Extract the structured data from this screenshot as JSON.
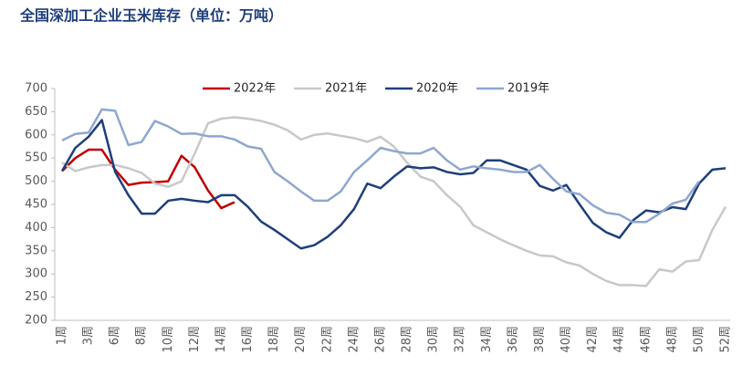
{
  "chart_data": {
    "type": "line",
    "title": "全国深加工企业玉米库存（单位：万吨）",
    "categories": [
      "1周",
      null,
      "3周",
      null,
      "6周",
      null,
      "8周",
      null,
      "10周",
      null,
      "12周",
      null,
      "14周",
      null,
      "16周",
      null,
      "18周",
      null,
      "20周",
      null,
      "22周",
      null,
      "24周",
      null,
      "26周",
      null,
      "28周",
      null,
      "30周",
      null,
      "32周",
      null,
      "34周",
      null,
      "36周",
      null,
      "38周",
      null,
      "40周",
      null,
      "42周",
      null,
      "44周",
      null,
      "46周",
      null,
      "48周",
      null,
      "50周",
      null,
      "52周"
    ],
    "ylim": [
      200,
      700
    ],
    "yticks": [
      200,
      250,
      300,
      350,
      400,
      450,
      500,
      550,
      600,
      650,
      700
    ],
    "series": [
      {
        "name": "2022年",
        "color": "#c00000",
        "values": [
          522,
          550,
          568,
          568,
          525,
          492,
          497,
          498,
          500,
          555,
          530,
          480,
          442,
          455,
          null,
          null,
          null,
          null,
          null,
          null,
          null,
          null,
          null,
          null,
          null,
          null,
          null,
          null,
          null,
          null,
          null,
          null,
          null,
          null,
          null,
          null,
          null,
          null,
          null,
          null,
          null,
          null,
          null,
          null,
          null,
          null,
          null,
          null,
          null,
          null,
          null
        ]
      },
      {
        "name": "2021年",
        "color": "#c8c8c8",
        "values": [
          540,
          522,
          530,
          535,
          535,
          528,
          518,
          495,
          488,
          500,
          560,
          625,
          635,
          638,
          635,
          630,
          622,
          610,
          590,
          600,
          603,
          598,
          593,
          585,
          596,
          575,
          540,
          510,
          500,
          470,
          445,
          405,
          390,
          375,
          362,
          350,
          340,
          338,
          325,
          318,
          300,
          285,
          276,
          276,
          274,
          310,
          305,
          327,
          330,
          395,
          445
        ]
      },
      {
        "name": "2020年",
        "color": "#1f3e7c",
        "values": [
          522,
          572,
          596,
          632,
          520,
          470,
          430,
          430,
          458,
          462,
          458,
          455,
          470,
          470,
          445,
          413,
          395,
          375,
          355,
          362,
          380,
          405,
          440,
          495,
          485,
          510,
          532,
          528,
          530,
          520,
          515,
          518,
          545,
          545,
          535,
          525,
          490,
          480,
          492,
          450,
          410,
          390,
          378,
          415,
          437,
          433,
          444,
          440,
          495,
          525,
          528
        ]
      },
      {
        "name": "2019年",
        "color": "#8ea7d0",
        "values": [
          588,
          602,
          605,
          655,
          652,
          578,
          585,
          630,
          618,
          602,
          603,
          597,
          597,
          590,
          575,
          570,
          520,
          500,
          478,
          458,
          458,
          478,
          520,
          545,
          572,
          565,
          560,
          560,
          572,
          545,
          525,
          532,
          528,
          525,
          520,
          520,
          535,
          505,
          478,
          472,
          448,
          432,
          428,
          412,
          412,
          430,
          452,
          460,
          500,
          null,
          null
        ]
      }
    ]
  }
}
